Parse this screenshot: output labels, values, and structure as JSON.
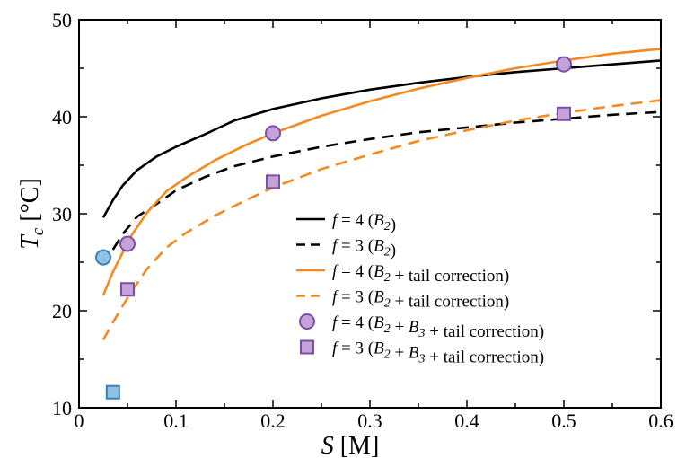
{
  "chart_data": {
    "type": "line",
    "xlabel": "S [M]",
    "ylabel": "T_c [°C]",
    "xlim": [
      0,
      0.6
    ],
    "ylim": [
      10,
      50
    ],
    "xticks": [
      "0",
      "0.1",
      "0.2",
      "0.3",
      "0.4",
      "0.5",
      "0.6"
    ],
    "yticks": [
      "10",
      "20",
      "30",
      "40",
      "50"
    ],
    "grid": false,
    "legend_position": "lower-right",
    "series": [
      {
        "name": "f = 4 (B2)",
        "legend": {
          "pre": "f = 4 (",
          "items": [
            [
              "B",
              "2"
            ]
          ],
          "post": ")"
        },
        "kind": "line",
        "color": "#000000",
        "dash": "solid",
        "x": [
          0.025,
          0.035,
          0.045,
          0.06,
          0.08,
          0.1,
          0.13,
          0.16,
          0.2,
          0.25,
          0.3,
          0.35,
          0.4,
          0.45,
          0.5,
          0.55,
          0.6
        ],
        "y": [
          29.6,
          31.4,
          32.9,
          34.5,
          35.9,
          36.9,
          38.2,
          39.6,
          40.8,
          41.9,
          42.8,
          43.5,
          44.1,
          44.6,
          45.0,
          45.4,
          45.8
        ]
      },
      {
        "name": "f = 3 (B2)",
        "legend": {
          "pre": "f = 3 (",
          "items": [
            [
              "B",
              "2"
            ]
          ],
          "post": ")"
        },
        "kind": "line",
        "color": "#000000",
        "dash": "dashed",
        "x": [
          0.035,
          0.045,
          0.06,
          0.08,
          0.1,
          0.13,
          0.16,
          0.2,
          0.25,
          0.3,
          0.35,
          0.4,
          0.45,
          0.5,
          0.55,
          0.6
        ],
        "y": [
          26.3,
          27.9,
          29.7,
          31.0,
          32.4,
          33.8,
          34.9,
          35.9,
          36.9,
          37.7,
          38.4,
          38.9,
          39.4,
          39.8,
          40.2,
          40.5
        ]
      },
      {
        "name": "f = 4 (B2 + tail correction)",
        "legend": {
          "pre": "f = 4 (",
          "items": [
            [
              "B",
              "2"
            ]
          ],
          "post": " + tail correction)"
        },
        "kind": "line",
        "color": "#f5891f",
        "dash": "solid",
        "x": [
          0.025,
          0.035,
          0.045,
          0.055,
          0.07,
          0.09,
          0.11,
          0.14,
          0.17,
          0.2,
          0.25,
          0.3,
          0.35,
          0.4,
          0.45,
          0.5,
          0.55,
          0.6
        ],
        "y": [
          21.6,
          24.0,
          26.0,
          27.9,
          30.1,
          32.3,
          33.7,
          35.5,
          37.0,
          38.3,
          40.1,
          41.6,
          42.9,
          44.0,
          45.0,
          45.8,
          46.5,
          47.0
        ]
      },
      {
        "name": "f = 3 (B2 + tail correction)",
        "legend": {
          "pre": "f = 3 (",
          "items": [
            [
              "B",
              "2"
            ]
          ],
          "post": " + tail correction)"
        },
        "kind": "line",
        "color": "#f5891f",
        "dash": "dashed",
        "x": [
          0.025,
          0.035,
          0.045,
          0.055,
          0.07,
          0.09,
          0.11,
          0.14,
          0.17,
          0.2,
          0.25,
          0.3,
          0.35,
          0.4,
          0.45,
          0.5,
          0.55,
          0.6
        ],
        "y": [
          17.0,
          18.8,
          20.5,
          22.1,
          24.3,
          26.5,
          28.0,
          29.8,
          31.3,
          32.7,
          34.6,
          36.1,
          37.5,
          38.6,
          39.6,
          40.4,
          41.1,
          41.7
        ]
      },
      {
        "name": "f = 4 (B2 + B3 + tail correction)",
        "legend": {
          "pre": "f = 4 (",
          "items": [
            [
              "B",
              "2"
            ],
            [
              "B",
              "3"
            ]
          ],
          "post": " + tail correction)"
        },
        "kind": "marker",
        "marker": "circle",
        "fill": "#c5a3d8",
        "stroke": "#7b4fa8",
        "x": [
          0.05,
          0.2,
          0.5
        ],
        "y": [
          26.9,
          38.3,
          45.4
        ]
      },
      {
        "name": "f = 3 (B2 + B3 + tail correction)",
        "legend": {
          "pre": "f = 3 (",
          "items": [
            [
              "B",
              "2"
            ],
            [
              "B",
              "3"
            ]
          ],
          "post": " + tail correction)"
        },
        "kind": "marker",
        "marker": "square",
        "fill": "#c5a3d8",
        "stroke": "#7b4fa8",
        "x": [
          0.05,
          0.2,
          0.5
        ],
        "y": [
          22.2,
          33.3,
          40.3
        ]
      }
    ],
    "extra_points": [
      {
        "marker": "circle",
        "fill": "#8fc3e6",
        "stroke": "#3a7fb5",
        "x": 0.025,
        "y": 25.5
      },
      {
        "marker": "square",
        "fill": "#8fc3e6",
        "stroke": "#3a7fb5",
        "x": 0.035,
        "y": 11.6
      }
    ]
  }
}
